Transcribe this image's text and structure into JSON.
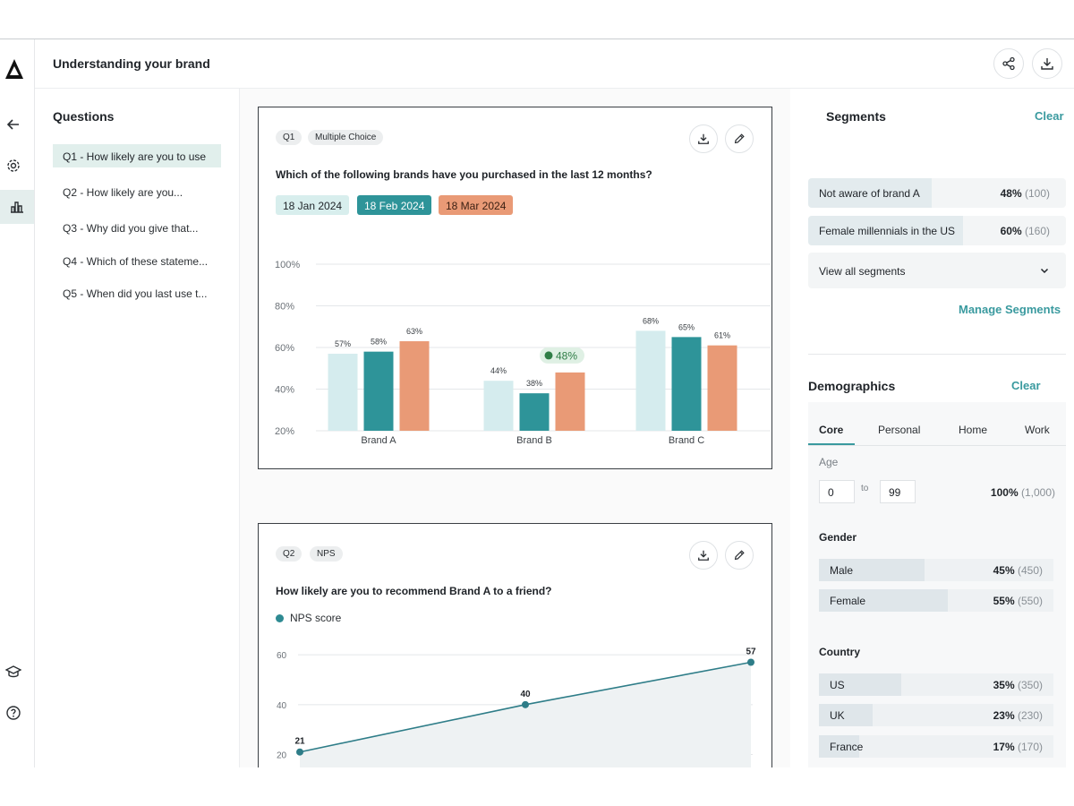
{
  "header": {
    "title": "Understanding your brand"
  },
  "rail": {
    "icons": [
      "brand-logo-icon",
      "back-arrow-icon",
      "settings-icon",
      "chart-icon",
      "graduation-cap-icon",
      "help-icon"
    ]
  },
  "questions": {
    "heading": "Questions",
    "items": [
      {
        "label": "Q1 - How likely are you to use"
      },
      {
        "label": "Q2 -  How likely are you..."
      },
      {
        "label": "Q3 - Why did you give that..."
      },
      {
        "label": "Q4 - Which of these stateme..."
      },
      {
        "label": "Q5 - When did you last use t..."
      }
    ]
  },
  "cards": [
    {
      "id_chip": "Q1",
      "type_chip": "Multiple Choice",
      "question": "Which of the following brands have you purchased in the last 12 months?",
      "dates": [
        "18 Jan 2024",
        "18 Feb 2024",
        "18 Mar 2024"
      ]
    },
    {
      "id_chip": "Q2",
      "type_chip": "NPS",
      "question": "How likely are you to recommend Brand A to a friend?",
      "legend": "NPS score"
    }
  ],
  "chart_data": [
    {
      "type": "bar",
      "categories": [
        "Brand A",
        "Brand B",
        "Brand C"
      ],
      "series": [
        {
          "name": "18 Jan 2024",
          "values": [
            57,
            44,
            68
          ],
          "color": "#d5ecee"
        },
        {
          "name": "18 Feb 2024",
          "values": [
            58,
            38,
            65
          ],
          "color": "#2e9499"
        },
        {
          "name": "18 Mar 2024",
          "values": [
            63,
            48,
            61
          ],
          "color": "#e99a76"
        }
      ],
      "value_labels": [
        [
          "57%",
          "44%",
          "68%"
        ],
        [
          "58%",
          "38%",
          "65%"
        ],
        [
          "63%",
          "48%",
          "61%"
        ]
      ],
      "highlight": {
        "category": "Brand B",
        "series": "18 Mar 2024",
        "label": "48%"
      },
      "yticks": [
        "100%",
        "80%",
        "60%",
        "40%",
        "20%"
      ],
      "ylim": [
        20,
        100
      ],
      "grid": true
    },
    {
      "type": "area",
      "series": [
        {
          "name": "NPS score",
          "values": [
            21,
            40,
            57
          ],
          "color": "#2e7d88"
        }
      ],
      "value_labels": [
        "21",
        "40",
        "57"
      ],
      "yticks": [
        "60",
        "40",
        "20"
      ],
      "ylim": [
        13,
        64
      ],
      "grid": true
    }
  ],
  "segments": {
    "heading": "Segments",
    "clear": "Clear",
    "items": [
      {
        "label": "Not aware of brand A",
        "pct": "48%",
        "count": "(100)",
        "share": 0.48
      },
      {
        "label": "Female millennials in the US",
        "pct": "60%",
        "count": "(160)",
        "share": 0.6
      }
    ],
    "view_all": "View all segments",
    "manage": "Manage Segments"
  },
  "demographics": {
    "heading": "Demographics",
    "clear": "Clear",
    "tabs": [
      "Core",
      "Personal",
      "Home",
      "Work"
    ],
    "age": {
      "label": "Age",
      "min": "0",
      "to": "to",
      "max": "99",
      "pct": "100%",
      "count": "(1,000)"
    },
    "gender": {
      "label": "Gender",
      "items": [
        {
          "label": "Male",
          "pct": "45%",
          "count": "(450)",
          "share": 0.45
        },
        {
          "label": "Female",
          "pct": "55%",
          "count": "(550)",
          "share": 0.55
        }
      ]
    },
    "country": {
      "label": "Country",
      "items": [
        {
          "label": "US",
          "pct": "35%",
          "count": "(350)",
          "share": 0.35
        },
        {
          "label": "UK",
          "pct": "23%",
          "count": "(230)",
          "share": 0.23
        },
        {
          "label": "France",
          "pct": "17%",
          "count": "(170)",
          "share": 0.17
        }
      ]
    }
  }
}
